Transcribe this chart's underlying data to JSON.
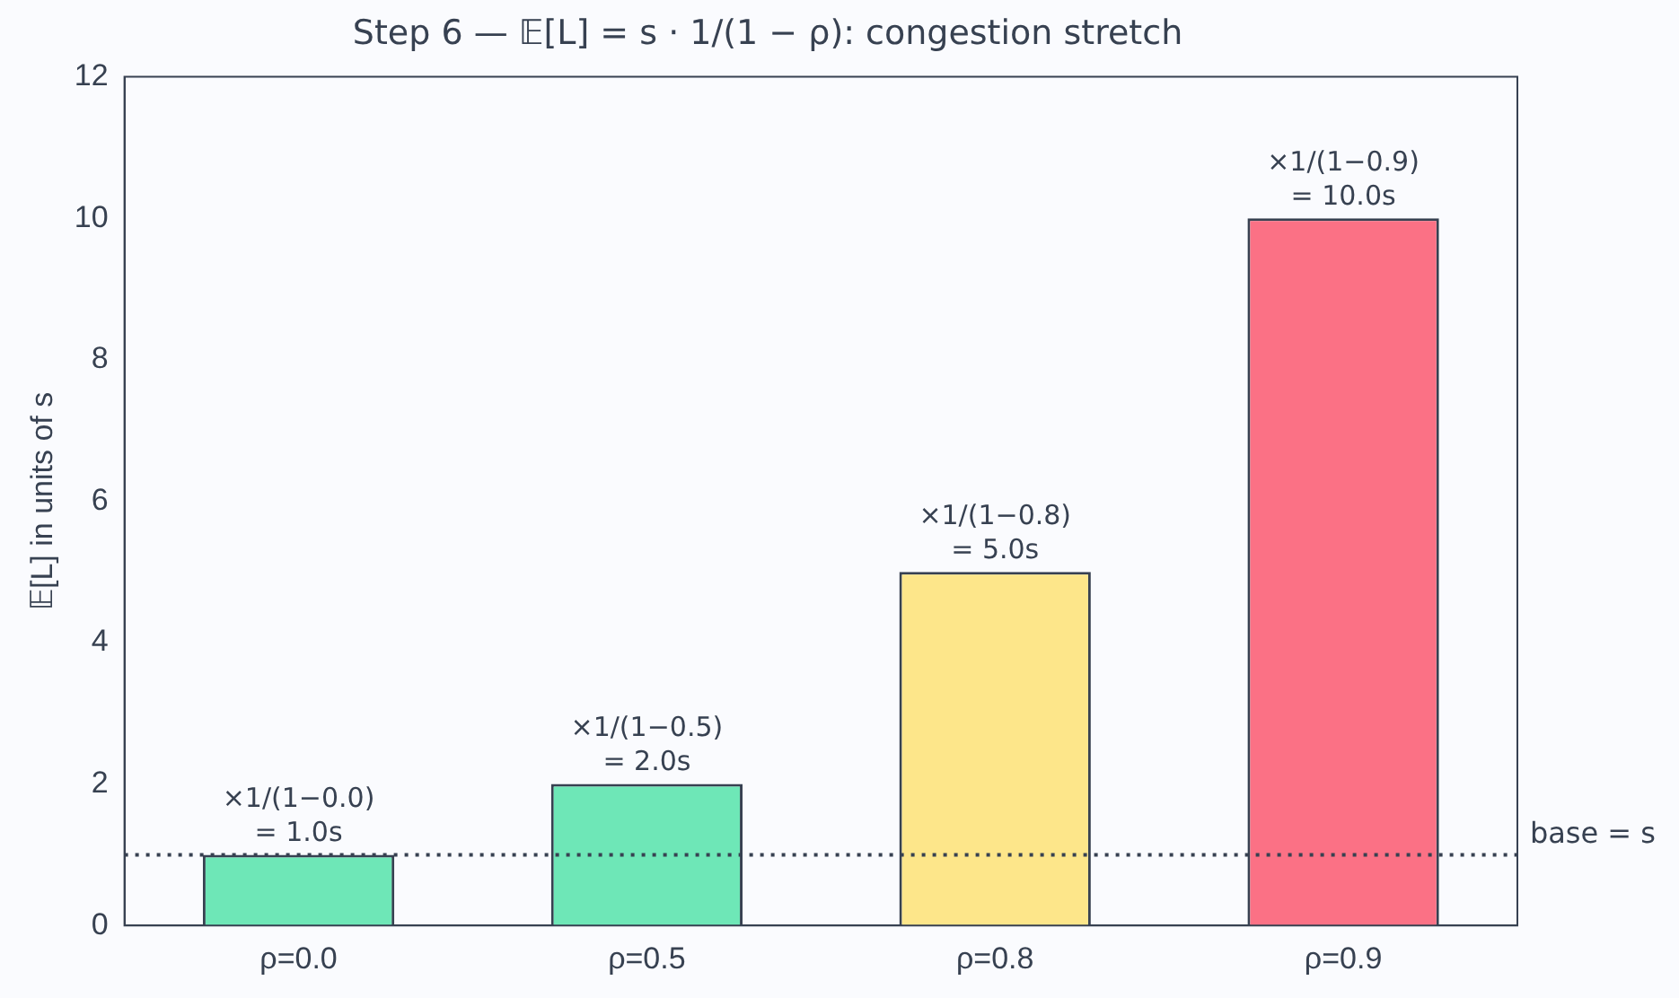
{
  "chart_data": {
    "type": "bar",
    "title": "Step 6 — 𝔼[L] = s · 1/(1 − ρ): congestion stretch",
    "ylabel": "𝔼[L] in units of s",
    "categories": [
      "ρ=0.0",
      "ρ=0.5",
      "ρ=0.8",
      "ρ=0.9"
    ],
    "values": [
      1,
      2,
      5,
      10
    ],
    "colors": [
      "#6ee7b7",
      "#6ee7b7",
      "#fde68a",
      "#fb7185"
    ],
    "value_labels": [
      "×1/(1−0.0)\n= 1.0s",
      "×1/(1−0.5)\n= 2.0s",
      "×1/(1−0.8)\n= 5.0s",
      "×1/(1−0.9)\n= 10.0s"
    ],
    "ylim": [
      0,
      12
    ],
    "yticks": [
      0,
      2,
      4,
      6,
      8,
      10,
      12
    ],
    "ref_lines": [
      {
        "axis": "y",
        "value": 1,
        "label": "base = s",
        "color": "#374151",
        "line_style": "dotted"
      }
    ],
    "grid": false,
    "legend": false
  }
}
